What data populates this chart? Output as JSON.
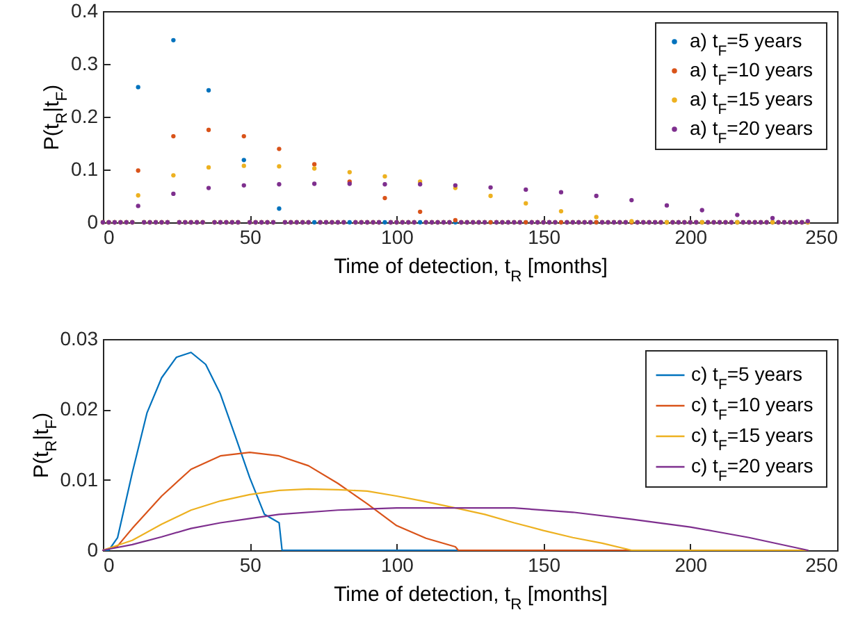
{
  "chart_data": [
    {
      "type": "scatter",
      "xlabel": "Time of detection, t$_{R}$ [months]",
      "ylabel": "P(t$_{R}$|t$_{F}$)",
      "xlim": [
        0,
        250
      ],
      "xticks": [
        0,
        50,
        100,
        150,
        200,
        250
      ],
      "ylim": [
        0,
        0.4
      ],
      "yticks": [
        0,
        0.1,
        0.2,
        0.3,
        0.4
      ],
      "grid": false,
      "legend": "top right",
      "marker": "circle",
      "x": [
        0,
        2,
        4,
        6,
        8,
        10,
        12,
        14,
        16,
        18,
        20,
        22,
        24,
        26,
        28,
        30,
        32,
        34,
        36,
        38,
        40,
        42,
        44,
        46,
        48,
        50,
        52,
        54,
        56,
        58,
        60,
        62,
        64,
        66,
        68,
        70,
        72,
        74,
        76,
        78,
        80,
        82,
        84,
        86,
        88,
        90,
        92,
        94,
        96,
        98,
        100,
        102,
        104,
        106,
        108,
        110,
        112,
        114,
        116,
        118,
        120,
        122,
        124,
        126,
        128,
        130,
        132,
        134,
        136,
        138,
        140,
        142,
        144,
        146,
        148,
        150,
        152,
        154,
        156,
        158,
        160,
        162,
        164,
        166,
        168,
        170,
        172,
        174,
        176,
        178,
        180,
        182,
        184,
        186,
        188,
        190,
        192,
        194,
        196,
        198,
        200,
        202,
        204,
        206,
        208,
        210,
        212,
        214,
        216,
        218,
        220,
        222,
        224,
        226,
        228,
        230,
        232,
        234,
        236,
        238,
        240
      ],
      "series": [
        {
          "name": "a) t$_{F}$=5 years",
          "color": "#0072bd",
          "values": [
            0,
            0,
            0,
            0,
            0,
            0,
            0.256,
            0,
            0,
            0,
            0,
            0,
            0.345,
            0,
            0,
            0,
            0,
            0,
            0.25,
            0,
            0,
            0,
            0,
            0,
            0.118,
            0,
            0,
            0,
            0,
            0,
            0.026,
            0,
            0,
            0,
            0,
            0,
            0,
            0,
            0,
            0,
            0,
            0,
            0,
            0,
            0,
            0,
            0,
            0,
            0,
            0,
            0,
            0,
            0,
            0,
            0,
            0,
            0,
            0,
            0,
            0,
            0,
            0,
            0,
            0,
            0,
            0,
            0,
            0,
            0,
            0,
            0,
            0,
            0,
            0,
            0,
            0,
            0,
            0,
            0,
            0,
            0,
            0,
            0,
            0,
            0,
            0,
            0,
            0,
            0,
            0,
            0,
            0,
            0,
            0,
            0,
            0,
            0,
            0,
            0,
            0,
            0,
            0,
            0,
            0,
            0,
            0,
            0,
            0,
            0,
            0,
            0,
            0,
            0,
            0,
            0,
            0,
            0,
            0,
            0,
            0,
            0
          ]
        },
        {
          "name": "a) t$_{F}$=10 years",
          "color": "#d95319",
          "values": [
            0,
            0,
            0,
            0,
            0,
            0,
            0.098,
            0,
            0,
            0,
            0,
            0,
            0.163,
            0,
            0,
            0,
            0,
            0,
            0.175,
            0,
            0,
            0,
            0,
            0,
            0.163,
            0,
            0,
            0,
            0,
            0,
            0.139,
            0,
            0,
            0,
            0,
            0,
            0.11,
            0,
            0,
            0,
            0,
            0,
            0.077,
            0,
            0,
            0,
            0,
            0,
            0.046,
            0,
            0,
            0,
            0,
            0,
            0.02,
            0,
            0,
            0,
            0,
            0,
            0.004,
            0,
            0,
            0,
            0,
            0,
            0,
            0,
            0,
            0,
            0,
            0,
            0,
            0,
            0,
            0,
            0,
            0,
            0,
            0,
            0,
            0,
            0,
            0,
            0,
            0,
            0,
            0,
            0,
            0,
            0,
            0,
            0,
            0,
            0,
            0,
            0,
            0,
            0,
            0,
            0,
            0,
            0,
            0,
            0,
            0,
            0,
            0,
            0,
            0,
            0,
            0,
            0,
            0,
            0,
            0,
            0,
            0,
            0,
            0,
            0
          ]
        },
        {
          "name": "a) t$_{F}$=15 years",
          "color": "#edb120",
          "values": [
            0,
            0,
            0,
            0,
            0,
            0,
            0.051,
            0,
            0,
            0,
            0,
            0,
            0.089,
            0,
            0,
            0,
            0,
            0,
            0.104,
            0,
            0,
            0,
            0,
            0,
            0.107,
            0,
            0,
            0,
            0,
            0,
            0.106,
            0,
            0,
            0,
            0,
            0,
            0.102,
            0,
            0,
            0,
            0,
            0,
            0.095,
            0,
            0,
            0,
            0,
            0,
            0.087,
            0,
            0,
            0,
            0,
            0,
            0.077,
            0,
            0,
            0,
            0,
            0,
            0.065,
            0,
            0,
            0,
            0,
            0,
            0.05,
            0,
            0,
            0,
            0,
            0,
            0.036,
            0,
            0,
            0,
            0,
            0,
            0.021,
            0,
            0,
            0,
            0,
            0,
            0.01,
            0,
            0,
            0,
            0,
            0,
            0.002,
            0,
            0,
            0,
            0,
            0,
            0,
            0,
            0,
            0,
            0,
            0,
            0,
            0,
            0,
            0,
            0,
            0,
            0,
            0,
            0,
            0,
            0,
            0,
            0,
            0,
            0,
            0,
            0,
            0,
            0
          ]
        },
        {
          "name": "a) t$_{F}$=20 years",
          "color": "#7e2f8e",
          "values": [
            0,
            0,
            0,
            0,
            0,
            0,
            0.031,
            0,
            0,
            0,
            0,
            0,
            0.054,
            0,
            0,
            0,
            0,
            0,
            0.065,
            0,
            0,
            0,
            0,
            0,
            0.07,
            0,
            0,
            0,
            0,
            0,
            0.072,
            0,
            0,
            0,
            0,
            0,
            0.073,
            0,
            0,
            0,
            0,
            0,
            0.073,
            0,
            0,
            0,
            0,
            0,
            0.072,
            0,
            0,
            0,
            0,
            0,
            0.072,
            0,
            0,
            0,
            0,
            0,
            0.07,
            0,
            0,
            0,
            0,
            0,
            0.066,
            0,
            0,
            0,
            0,
            0,
            0.062,
            0,
            0,
            0,
            0,
            0,
            0.057,
            0,
            0,
            0,
            0,
            0,
            0.05,
            0,
            0,
            0,
            0,
            0,
            0.042,
            0,
            0,
            0,
            0,
            0,
            0.032,
            0,
            0,
            0,
            0,
            0,
            0.023,
            0,
            0,
            0,
            0,
            0,
            0.014,
            0,
            0,
            0,
            0,
            0,
            0.008,
            0,
            0,
            0,
            0,
            0,
            0.002
          ]
        }
      ]
    },
    {
      "type": "line",
      "xlabel": "Time of detection, t$_{R}$ [months]",
      "ylabel": "P(t$_{R}$|t$_{F}$)",
      "xlim": [
        0,
        250
      ],
      "xticks": [
        0,
        50,
        100,
        150,
        200,
        250
      ],
      "ylim": [
        0,
        0.03
      ],
      "yticks": [
        0,
        0.01,
        0.02,
        0.03
      ],
      "grid": false,
      "legend": "top right",
      "line_style": "solid",
      "series": [
        {
          "name": "c) t$_{F}$=5 years",
          "color": "#0072bd",
          "x": [
            0,
            2,
            5,
            10,
            15,
            20,
            25,
            30,
            35,
            40,
            45,
            50,
            55,
            60,
            61,
            240
          ],
          "values": [
            0,
            0,
            0.0018,
            0.011,
            0.0195,
            0.0245,
            0.0274,
            0.0281,
            0.0264,
            0.0222,
            0.0163,
            0.0103,
            0.0051,
            0.0039,
            0,
            0
          ]
        },
        {
          "name": "c) t$_{F}$=10 years",
          "color": "#d95319",
          "x": [
            0,
            5,
            10,
            20,
            30,
            40,
            50,
            60,
            70,
            80,
            90,
            100,
            110,
            120,
            121,
            240
          ],
          "values": [
            0,
            0.0006,
            0.0031,
            0.0077,
            0.0115,
            0.0134,
            0.0139,
            0.0134,
            0.012,
            0.0095,
            0.0066,
            0.0035,
            0.0017,
            0.0005,
            0,
            0
          ]
        },
        {
          "name": "c) t$_{F}$=15 years",
          "color": "#edb120",
          "x": [
            0,
            10,
            20,
            30,
            40,
            50,
            60,
            70,
            80,
            90,
            100,
            110,
            120,
            130,
            140,
            150,
            160,
            170,
            180,
            240
          ],
          "values": [
            0,
            0.0014,
            0.0037,
            0.0057,
            0.007,
            0.0079,
            0.0085,
            0.0087,
            0.0086,
            0.0084,
            0.0077,
            0.0069,
            0.006,
            0.0051,
            0.0039,
            0.0028,
            0.0018,
            0.001,
            0,
            0
          ]
        },
        {
          "name": "c) t$_{F}$=20 years",
          "color": "#7e2f8e",
          "x": [
            0,
            10,
            20,
            30,
            40,
            50,
            60,
            80,
            100,
            120,
            140,
            160,
            180,
            200,
            220,
            240
          ],
          "values": [
            0,
            0.0008,
            0.0019,
            0.0031,
            0.0039,
            0.0045,
            0.0051,
            0.0057,
            0.006,
            0.006,
            0.006,
            0.0054,
            0.0044,
            0.0033,
            0.0018,
            0
          ]
        }
      ]
    }
  ]
}
